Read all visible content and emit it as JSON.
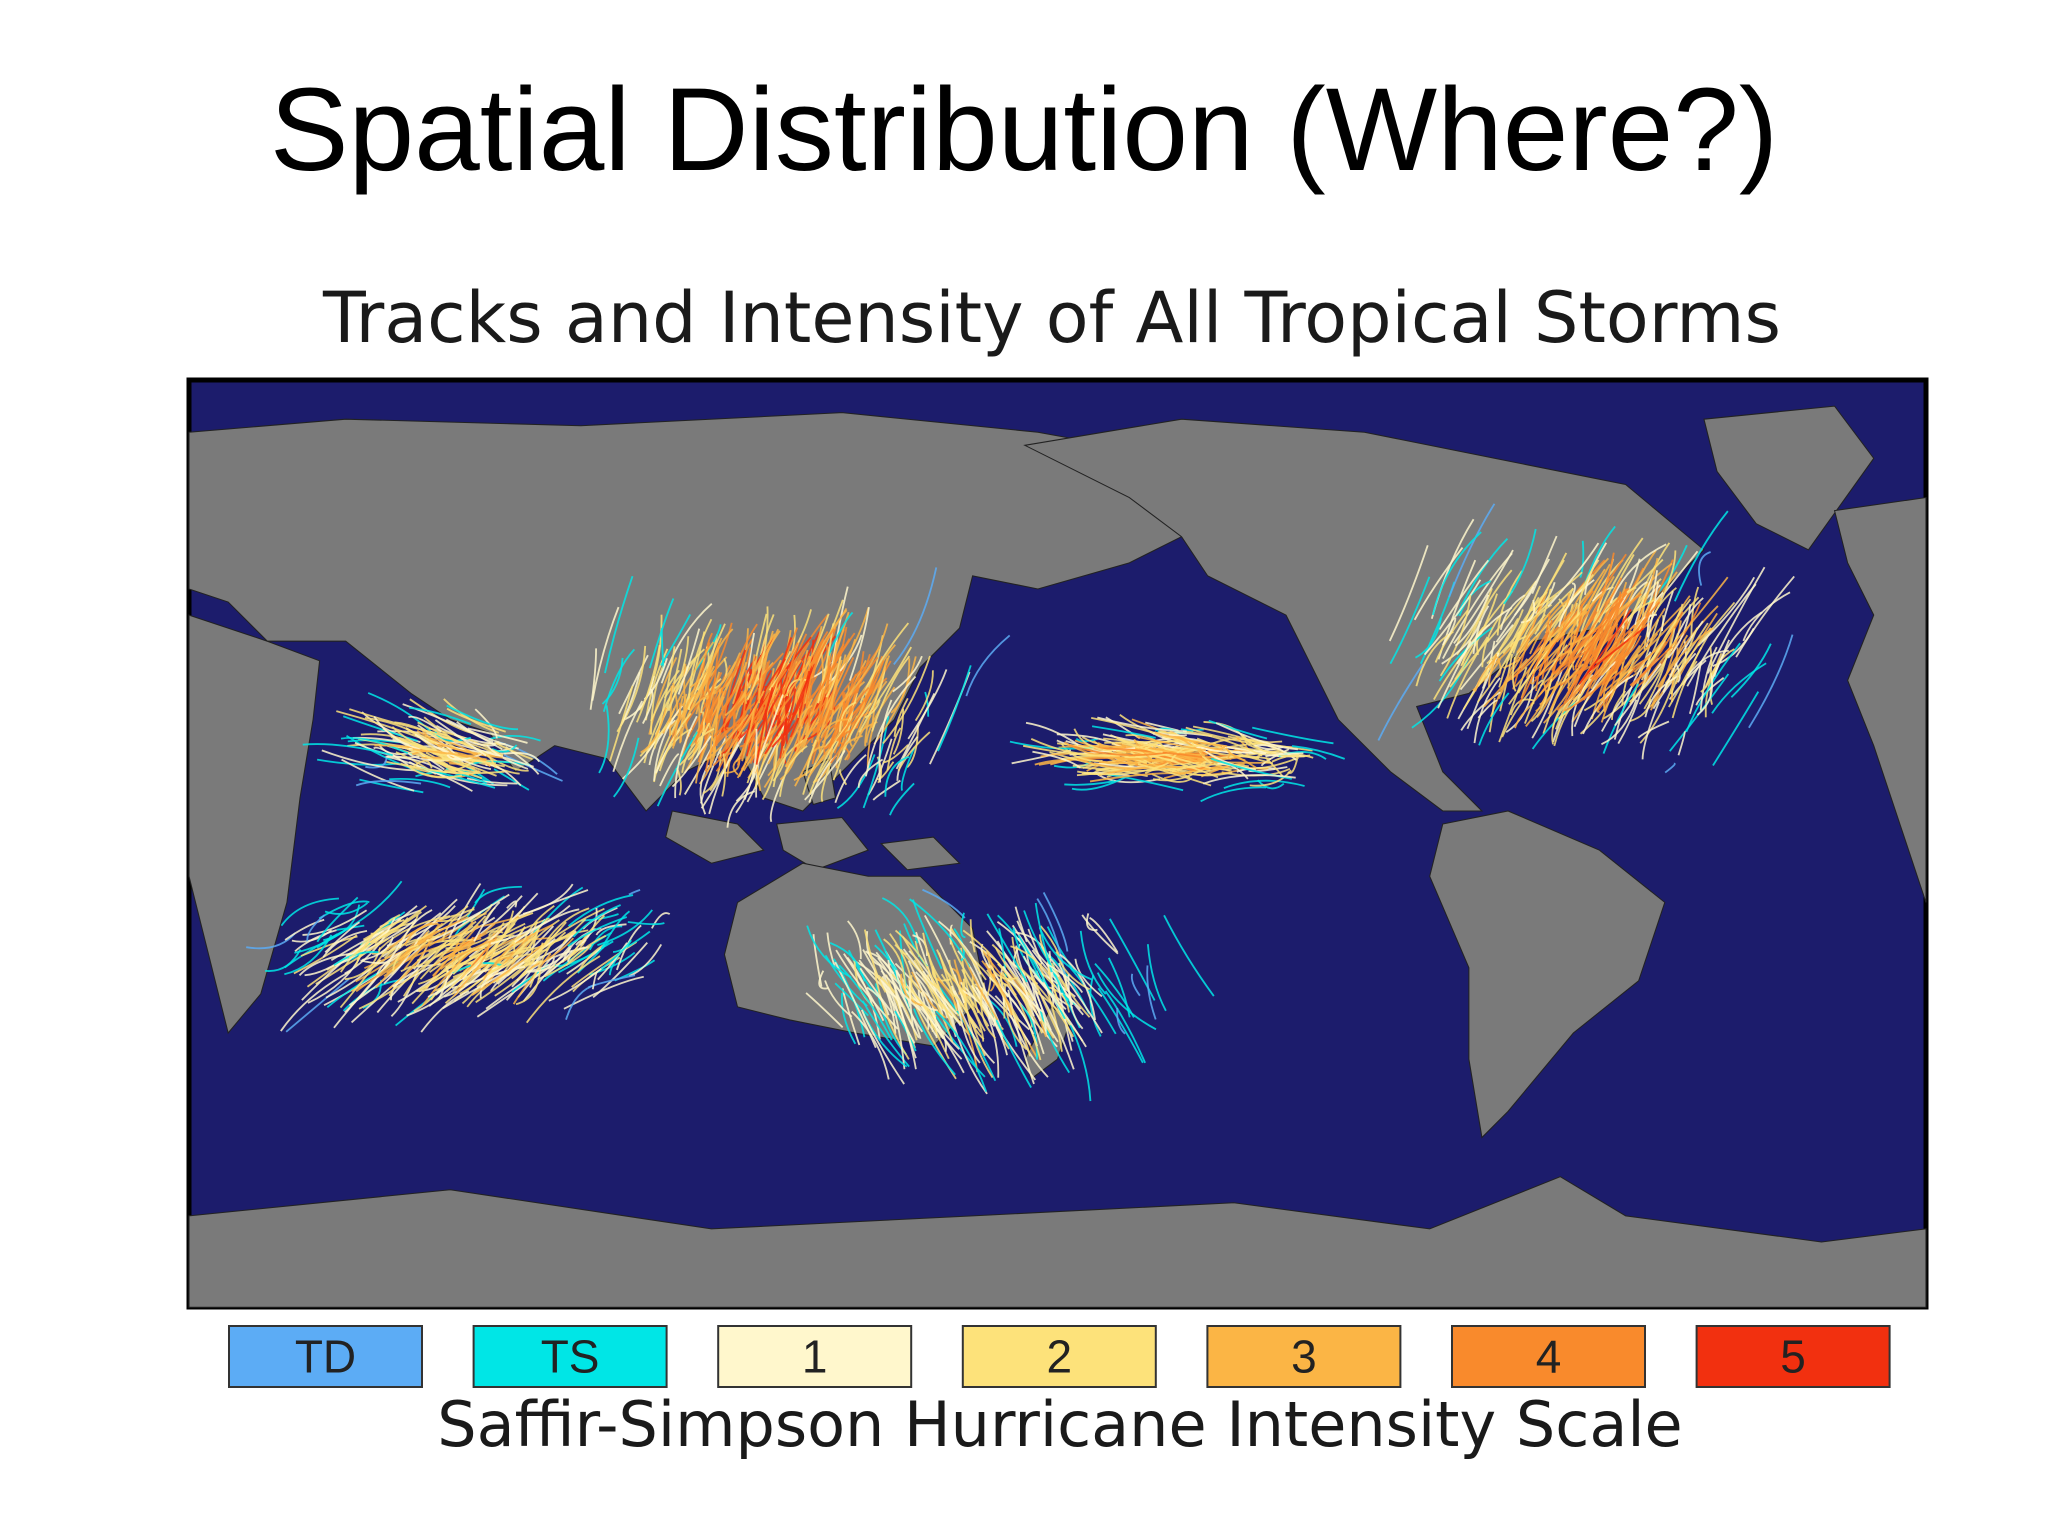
{
  "title": "Spatial Distribution (Where?)",
  "figure": {
    "title": "Tracks and Intensity of All Tropical Storms",
    "legend": {
      "items": [
        {
          "label": "TD",
          "color": "#5cacf5"
        },
        {
          "label": "TS",
          "color": "#00e6e6"
        },
        {
          "label": "1",
          "color": "#fff7cc"
        },
        {
          "label": "2",
          "color": "#fde27a"
        },
        {
          "label": "3",
          "color": "#fbb545"
        },
        {
          "label": "4",
          "color": "#f98a2c"
        },
        {
          "label": "5",
          "color": "#f2300f"
        }
      ],
      "title": "Saffir-Simpson Hurricane Intensity Scale"
    }
  }
}
